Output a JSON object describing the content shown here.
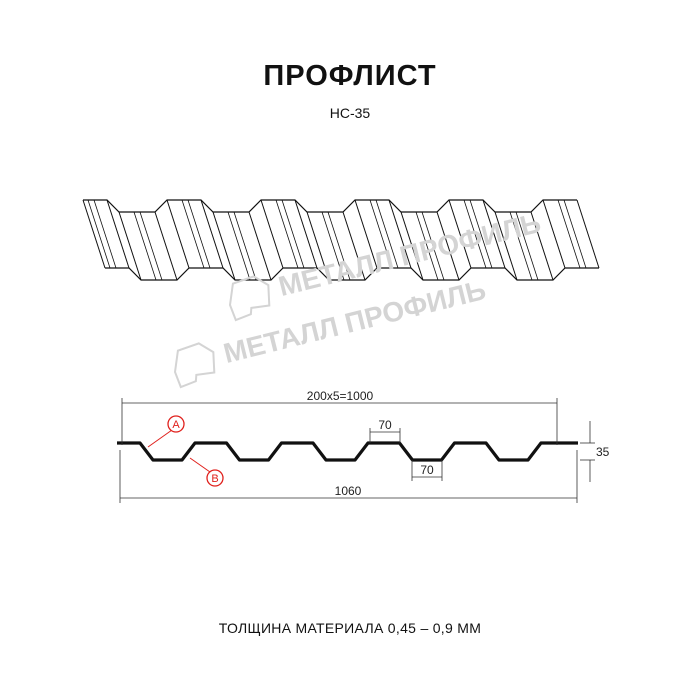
{
  "title": "ПРОФЛИСТ",
  "model": "НС-35",
  "watermark": "МЕТАЛЛ ПРОФИЛЬ",
  "dimensions": {
    "pitch_total": "200x5=1000",
    "full_width": "1060",
    "height": "35",
    "crest_width": "70",
    "valley_width": "70"
  },
  "markers": {
    "a": "A",
    "b": "B"
  },
  "footer": "ТОЛЩИНА МАТЕРИАЛА 0,45 – 0,9 ММ",
  "colors": {
    "profile": "#111111",
    "marker": "#e0201c",
    "watermark": "#d4d4d4"
  }
}
